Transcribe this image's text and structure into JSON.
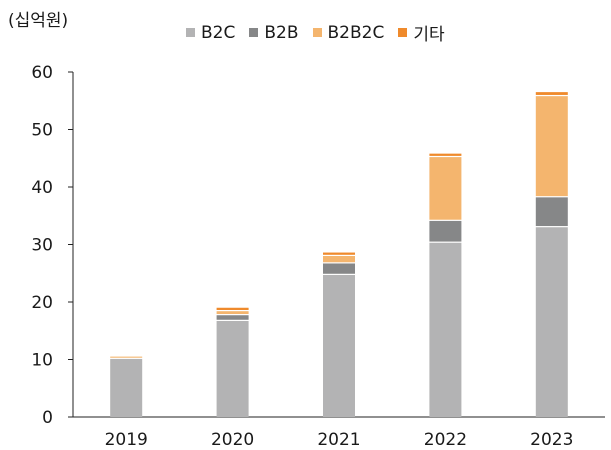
{
  "unit_label": "(십억원)",
  "chart_data": {
    "type": "bar",
    "stacked": true,
    "categories": [
      "2019",
      "2020",
      "2021",
      "2022",
      "2023"
    ],
    "ylim": [
      0,
      60
    ],
    "yticks": [
      0,
      10,
      20,
      30,
      40,
      50,
      60
    ],
    "grid": false,
    "legend_position": "top",
    "series": [
      {
        "name": "B2C",
        "color": "#b3b3b4",
        "values": [
          10.1,
          16.7,
          24.7,
          30.3,
          33.0
        ]
      },
      {
        "name": "B2B",
        "color": "#868788",
        "values": [
          0.0,
          1.0,
          2.0,
          3.8,
          5.2
        ]
      },
      {
        "name": "B2B2C",
        "color": "#f4b56e",
        "values": [
          0.4,
          0.7,
          1.3,
          11.1,
          17.6
        ]
      },
      {
        "name": "기타",
        "color": "#ef8a2c",
        "values": [
          0.1,
          0.6,
          0.6,
          0.6,
          0.7
        ]
      }
    ]
  }
}
